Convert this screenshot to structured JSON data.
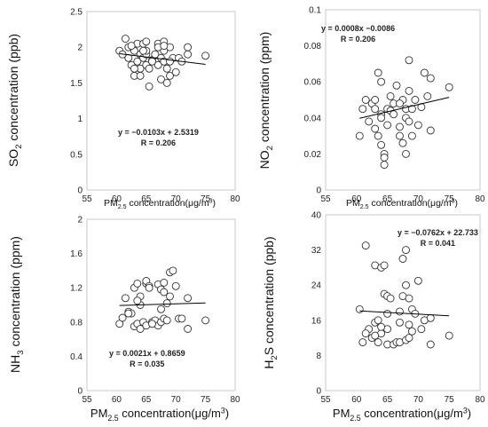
{
  "chart_data": [
    {
      "type": "scatter",
      "xlabel": {
        "main": "PM",
        "sub": "2.5",
        "tail": " concentration(μg/m",
        "sup": "3",
        "end": ")"
      },
      "ylabel": {
        "main": "SO",
        "sub": "2",
        "tail": " concentration (ppb)"
      },
      "xlim": [
        55,
        80
      ],
      "ylim": [
        0,
        2.5
      ],
      "xticks": [
        "55",
        "60",
        "65",
        "70",
        "75",
        "80"
      ],
      "yticks": [
        "0",
        "0.5",
        "1",
        "1.5",
        "2",
        "2.5"
      ],
      "equation": "y = −0.0103x + 2.5319",
      "r_label": "R = 0.206",
      "trend": {
        "slope": -0.0103,
        "intercept": 2.5319
      },
      "series": [
        {
          "x": [
            60.5,
            61.5,
            62.0,
            62.0,
            62.5,
            63.0,
            63.0,
            63.5,
            63.5,
            64.0,
            64.0,
            64.5,
            64.5,
            65.0,
            65.0,
            65.0,
            65.5,
            66.0,
            66.5,
            67.0,
            67.0,
            67.5,
            67.5,
            68.0,
            68.0,
            68.0,
            68.5,
            68.5,
            69.0,
            69.0,
            69.5,
            70.0,
            70.5,
            71.0,
            72.0,
            72.0,
            75.0,
            61.0,
            63.0,
            64.0,
            65.0,
            66.0,
            67.0,
            68.0,
            69.0,
            65.5,
            62.5,
            64.5
          ],
          "y": [
            1.95,
            2.12,
            2.0,
            1.85,
            1.75,
            1.95,
            1.6,
            2.05,
            1.8,
            1.9,
            1.7,
            2.05,
            1.85,
            2.08,
            1.75,
            1.9,
            1.45,
            1.82,
            1.9,
            1.75,
            2.05,
            1.85,
            1.55,
            2.08,
            1.95,
            1.8,
            1.7,
            1.5,
            2.0,
            1.6,
            1.85,
            1.65,
            1.85,
            1.8,
            2.0,
            1.9,
            1.88,
            1.9,
            1.7,
            1.6,
            1.95,
            1.8,
            2.0,
            2.02,
            1.8,
            1.7,
            2.02,
            1.95
          ]
        }
      ]
    },
    {
      "type": "scatter",
      "xlabel": {
        "main": "PM",
        "sub": "2.5",
        "tail": " concentration(μg/m",
        "sup": "3",
        "end": ")"
      },
      "ylabel": {
        "main": "NO",
        "sub": "2",
        "tail": " concentration (ppm)"
      },
      "xlim": [
        55,
        80
      ],
      "ylim": [
        0,
        0.1
      ],
      "xticks": [
        "55",
        "60",
        "65",
        "70",
        "75",
        "80"
      ],
      "yticks": [
        "0",
        "0.02",
        "0.04",
        "0.06",
        "0.08",
        "0.1"
      ],
      "equation": "y = 0.0008x −0.0086",
      "r_label": "R = 0.206",
      "trend": {
        "slope": 0.0008,
        "intercept": -0.0086
      },
      "series": [
        {
          "x": [
            60.5,
            61.0,
            61.5,
            62.0,
            62.5,
            63.0,
            63.0,
            63.5,
            63.5,
            64.0,
            64.0,
            64.0,
            64.5,
            64.5,
            64.5,
            65.0,
            65.0,
            65.5,
            65.5,
            66.0,
            66.5,
            67.0,
            67.0,
            67.5,
            67.5,
            68.0,
            68.0,
            68.0,
            68.5,
            68.5,
            69.0,
            69.0,
            69.5,
            70.0,
            70.5,
            71.0,
            71.5,
            72.0,
            72.0,
            75.0,
            63.0,
            66.0,
            68.5,
            64.0,
            67.0
          ],
          "y": [
            0.03,
            0.045,
            0.05,
            0.038,
            0.048,
            0.034,
            0.05,
            0.065,
            0.03,
            0.042,
            0.025,
            0.04,
            0.02,
            0.018,
            0.014,
            0.036,
            0.045,
            0.052,
            0.044,
            0.048,
            0.058,
            0.035,
            0.03,
            0.05,
            0.026,
            0.04,
            0.045,
            0.02,
            0.072,
            0.055,
            0.045,
            0.03,
            0.05,
            0.036,
            0.046,
            0.065,
            0.052,
            0.062,
            0.033,
            0.057,
            0.045,
            0.042,
            0.038,
            0.06,
            0.048
          ]
        }
      ]
    },
    {
      "type": "scatter",
      "xlabel": {
        "main": "PM",
        "sub": "2.5",
        "tail": " concentration(μg/m",
        "sup": "3",
        "end": ")"
      },
      "ylabel": {
        "main": "NH",
        "sub": "3",
        "tail": " concentration (ppm)"
      },
      "xlim": [
        55,
        80
      ],
      "ylim": [
        0,
        2.0
      ],
      "xticks": [
        "55",
        "60",
        "65",
        "70",
        "75",
        "80"
      ],
      "yticks": [
        "0",
        "0.4",
        "0.8",
        "1.2",
        "1.6",
        "2"
      ],
      "equation": "y = 0.0021x + 0.8659",
      "r_label": "R = 0.035",
      "trend": {
        "slope": 0.0021,
        "intercept": 0.8659
      },
      "series": [
        {
          "x": [
            60.5,
            61.0,
            61.5,
            62.0,
            62.5,
            63.0,
            63.0,
            63.5,
            63.5,
            64.0,
            64.0,
            64.5,
            65.0,
            65.0,
            65.0,
            65.5,
            65.5,
            66.0,
            66.5,
            67.0,
            67.0,
            67.5,
            67.5,
            68.0,
            68.0,
            68.5,
            68.5,
            69.0,
            69.0,
            69.5,
            70.0,
            70.5,
            71.0,
            72.0,
            72.0,
            75.0,
            62.0,
            64.0,
            66.0,
            68.0,
            63.5,
            67.5
          ],
          "y": [
            0.78,
            0.85,
            1.08,
            0.92,
            0.9,
            1.2,
            0.75,
            1.25,
            0.78,
            1.1,
            0.72,
            0.8,
            1.25,
            1.28,
            0.76,
            1.22,
            1.2,
            0.8,
            0.82,
            1.24,
            0.76,
            1.18,
            0.8,
            1.26,
            0.84,
            1.02,
            0.82,
            1.38,
            1.1,
            1.4,
            1.22,
            0.84,
            0.84,
            1.08,
            0.72,
            0.82,
            0.9,
            1.0,
            0.78,
            1.15,
            1.05,
            0.95
          ]
        }
      ]
    },
    {
      "type": "scatter",
      "xlabel": {
        "main": "PM",
        "sub": "2.5",
        "tail": " concentration(μg/m",
        "sup": "3",
        "end": ")"
      },
      "ylabel": {
        "main": "H",
        "sub": "2",
        "tail": "S concentration (ppb)"
      },
      "xlim": [
        55,
        80
      ],
      "ylim": [
        0,
        40
      ],
      "xticks": [
        "55",
        "60",
        "65",
        "70",
        "75",
        "80"
      ],
      "yticks": [
        "0",
        "8",
        "16",
        "24",
        "32",
        "40"
      ],
      "equation": "y = −0.0762x + 22.733",
      "r_label": "R = 0.041",
      "trend": {
        "slope": -0.0762,
        "intercept": 22.733
      },
      "series": [
        {
          "x": [
            60.5,
            61.0,
            61.5,
            62.0,
            62.5,
            63.0,
            63.0,
            63.5,
            63.5,
            64.0,
            64.0,
            64.5,
            64.5,
            65.0,
            65.0,
            65.0,
            65.5,
            66.0,
            66.5,
            67.0,
            67.0,
            67.5,
            67.5,
            68.0,
            68.0,
            68.0,
            68.5,
            68.5,
            69.0,
            69.0,
            69.5,
            70.0,
            70.5,
            71.0,
            72.0,
            72.0,
            75.0,
            61.5,
            63.0,
            65.0,
            67.0,
            68.5,
            64.0
          ],
          "y": [
            18.5,
            11.0,
            33.0,
            14.0,
            12.0,
            28.5,
            15.5,
            16.0,
            11.0,
            28.0,
            13.0,
            22.0,
            28.5,
            21.5,
            10.5,
            14.0,
            21.0,
            10.5,
            11.0,
            15.5,
            11.0,
            21.5,
            30.0,
            32.0,
            24.0,
            11.5,
            15.0,
            12.0,
            18.5,
            13.5,
            17.5,
            25.0,
            14.0,
            16.0,
            16.5,
            10.5,
            12.5,
            13.0,
            12.5,
            17.5,
            18.0,
            21.0,
            14.5
          ]
        }
      ]
    }
  ]
}
